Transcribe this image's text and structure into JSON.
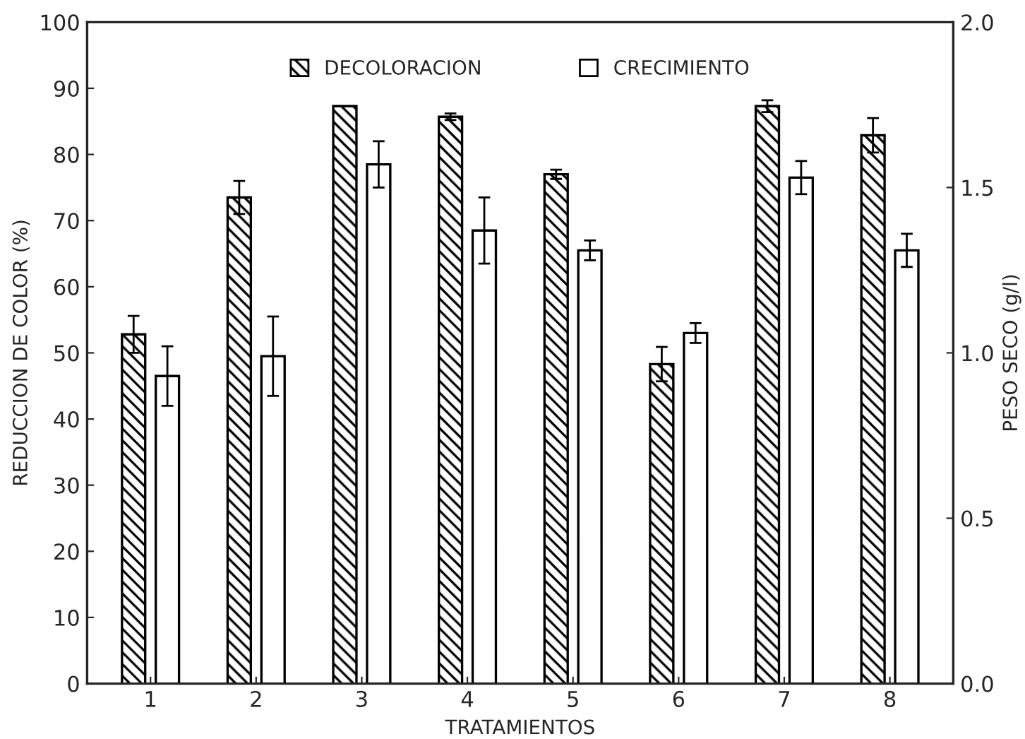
{
  "chart_data": {
    "type": "bar",
    "xlabel": "TRATAMIENTOS",
    "ylabel": "REDUCCION DE COLOR (%)",
    "y2label": "PESO SECO (g/l)",
    "categories": [
      "1",
      "2",
      "3",
      "4",
      "5",
      "6",
      "7",
      "8"
    ],
    "series": [
      {
        "name": "DECOLORACION",
        "color": "#000000",
        "values": [
          52.8,
          73.5,
          87.3,
          85.7,
          77.0,
          48.3,
          87.3,
          82.9
        ],
        "errors": [
          2.8,
          2.5,
          null,
          0.5,
          0.7,
          2.6,
          0.9,
          2.6
        ]
      },
      {
        "name": "CRECIMIENTO",
        "color": "#ffffff",
        "axis": "y2",
        "values": [
          0.93,
          0.99,
          1.57,
          1.37,
          1.31,
          1.06,
          1.53,
          1.31
        ],
        "errors": [
          0.09,
          0.12,
          0.07,
          0.1,
          0.03,
          0.03,
          0.05,
          0.05
        ]
      }
    ],
    "ylim": [
      0,
      100
    ],
    "yticks": [
      0,
      10,
      20,
      30,
      40,
      50,
      60,
      70,
      80,
      90,
      100
    ],
    "y2lim": [
      0,
      2
    ],
    "y2ticks": [
      {
        "value": 0,
        "label": "0.0"
      },
      {
        "value": 0.5,
        "label": "0.5"
      },
      {
        "value": 1,
        "label": "1.0"
      },
      {
        "value": 1.5,
        "label": "1.5"
      },
      {
        "value": 2,
        "label": "2.0"
      }
    ],
    "grid": false,
    "legend": "top"
  }
}
